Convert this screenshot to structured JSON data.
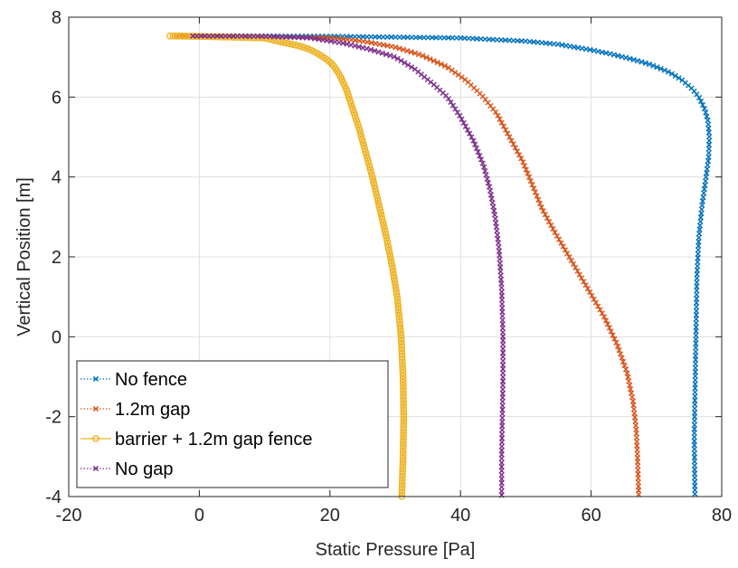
{
  "chart_data": {
    "type": "line",
    "xlabel": "Static Pressure [Pa]",
    "ylabel": "Vertical Position [m]",
    "xlim": [
      -20,
      80
    ],
    "ylim": [
      -4,
      8
    ],
    "xticks": [
      -20,
      0,
      20,
      40,
      60,
      80
    ],
    "yticks": [
      -4,
      -2,
      0,
      2,
      4,
      6,
      8
    ],
    "xtick_labels": [
      "-20",
      "0",
      "20",
      "40",
      "60",
      "80"
    ],
    "ytick_labels": [
      "-4",
      "-2",
      "0",
      "2",
      "4",
      "6",
      "8"
    ],
    "grid": true,
    "legend_position": "bottom-left",
    "series": [
      {
        "name": "No fence",
        "color": "#0072BD",
        "line_style": "dotted",
        "marker": "x",
        "points": [
          [
            -0.5,
            7.53
          ],
          [
            20,
            7.52
          ],
          [
            40,
            7.48
          ],
          [
            50,
            7.4
          ],
          [
            55,
            7.32
          ],
          [
            60,
            7.18
          ],
          [
            63,
            7.08
          ],
          [
            66,
            6.96
          ],
          [
            69,
            6.82
          ],
          [
            72,
            6.62
          ],
          [
            74,
            6.42
          ],
          [
            75.5,
            6.2
          ],
          [
            76.5,
            6.0
          ],
          [
            77.4,
            5.7
          ],
          [
            77.9,
            5.4
          ],
          [
            78.1,
            5.0
          ],
          [
            78.0,
            4.5
          ],
          [
            77.6,
            4.0
          ],
          [
            77.0,
            3.3
          ],
          [
            76.5,
            2.5
          ],
          [
            76.2,
            1.5
          ],
          [
            76.1,
            0.5
          ],
          [
            76.0,
            -0.5
          ],
          [
            75.9,
            -1.5
          ],
          [
            75.8,
            -2.5
          ],
          [
            75.85,
            -3.3
          ],
          [
            75.9,
            -4.0
          ]
        ]
      },
      {
        "name": "1.2m gap",
        "color": "#D95319",
        "line_style": "dotted",
        "marker": "x",
        "points": [
          [
            -3.5,
            7.53
          ],
          [
            10,
            7.52
          ],
          [
            20,
            7.48
          ],
          [
            25,
            7.4
          ],
          [
            30,
            7.25
          ],
          [
            34,
            7.05
          ],
          [
            38,
            6.75
          ],
          [
            41,
            6.4
          ],
          [
            43.5,
            6.0
          ],
          [
            45.5,
            5.6
          ],
          [
            47.5,
            5.0
          ],
          [
            49.5,
            4.4
          ],
          [
            51,
            3.8
          ],
          [
            52.5,
            3.2
          ],
          [
            54.5,
            2.6
          ],
          [
            57,
            1.9
          ],
          [
            59.5,
            1.2
          ],
          [
            62,
            0.5
          ],
          [
            64,
            -0.2
          ],
          [
            65.5,
            -0.9
          ],
          [
            66.4,
            -1.6
          ],
          [
            66.9,
            -2.3
          ],
          [
            67.1,
            -3.0
          ],
          [
            67.2,
            -3.5
          ],
          [
            67.3,
            -4.0
          ]
        ]
      },
      {
        "name": "barrier + 1.2m gap fence",
        "color": "#EDB120",
        "line_style": "solid",
        "marker": "o",
        "points": [
          [
            -4.5,
            7.53
          ],
          [
            0,
            7.52
          ],
          [
            10,
            7.48
          ],
          [
            12.5,
            7.38
          ],
          [
            14,
            7.33
          ],
          [
            15.5,
            7.27
          ],
          [
            16.8,
            7.2
          ],
          [
            17.8,
            7.12
          ],
          [
            18.8,
            7.02
          ],
          [
            19.7,
            6.92
          ],
          [
            20.5,
            6.8
          ],
          [
            21.5,
            6.55
          ],
          [
            22.5,
            6.2
          ],
          [
            23.5,
            5.7
          ],
          [
            24.5,
            5.2
          ],
          [
            25.5,
            4.6
          ],
          [
            26.5,
            4.0
          ],
          [
            27.5,
            3.3
          ],
          [
            28.5,
            2.6
          ],
          [
            29.5,
            1.8
          ],
          [
            30.3,
            1.0
          ],
          [
            30.9,
            0.0
          ],
          [
            31.2,
            -1.0
          ],
          [
            31.3,
            -2.0
          ],
          [
            31.2,
            -3.0
          ],
          [
            31.0,
            -4.0
          ]
        ]
      },
      {
        "name": "No gap",
        "color": "#7E2F8E",
        "line_style": "dotted",
        "marker": "x",
        "points": [
          [
            -1,
            7.53
          ],
          [
            10,
            7.52
          ],
          [
            17,
            7.48
          ],
          [
            22,
            7.35
          ],
          [
            26,
            7.2
          ],
          [
            30,
            7.0
          ],
          [
            33,
            6.7
          ],
          [
            36,
            6.3
          ],
          [
            38,
            6.0
          ],
          [
            40,
            5.5
          ],
          [
            42,
            4.9
          ],
          [
            43.5,
            4.3
          ],
          [
            44.5,
            3.7
          ],
          [
            45.3,
            3.0
          ],
          [
            45.9,
            2.2
          ],
          [
            46.3,
            1.2
          ],
          [
            46.5,
            0.0
          ],
          [
            46.5,
            -1.0
          ],
          [
            46.4,
            -2.0
          ],
          [
            46.3,
            -3.0
          ],
          [
            46.3,
            -3.6
          ],
          [
            46.3,
            -4.0
          ]
        ]
      }
    ]
  }
}
